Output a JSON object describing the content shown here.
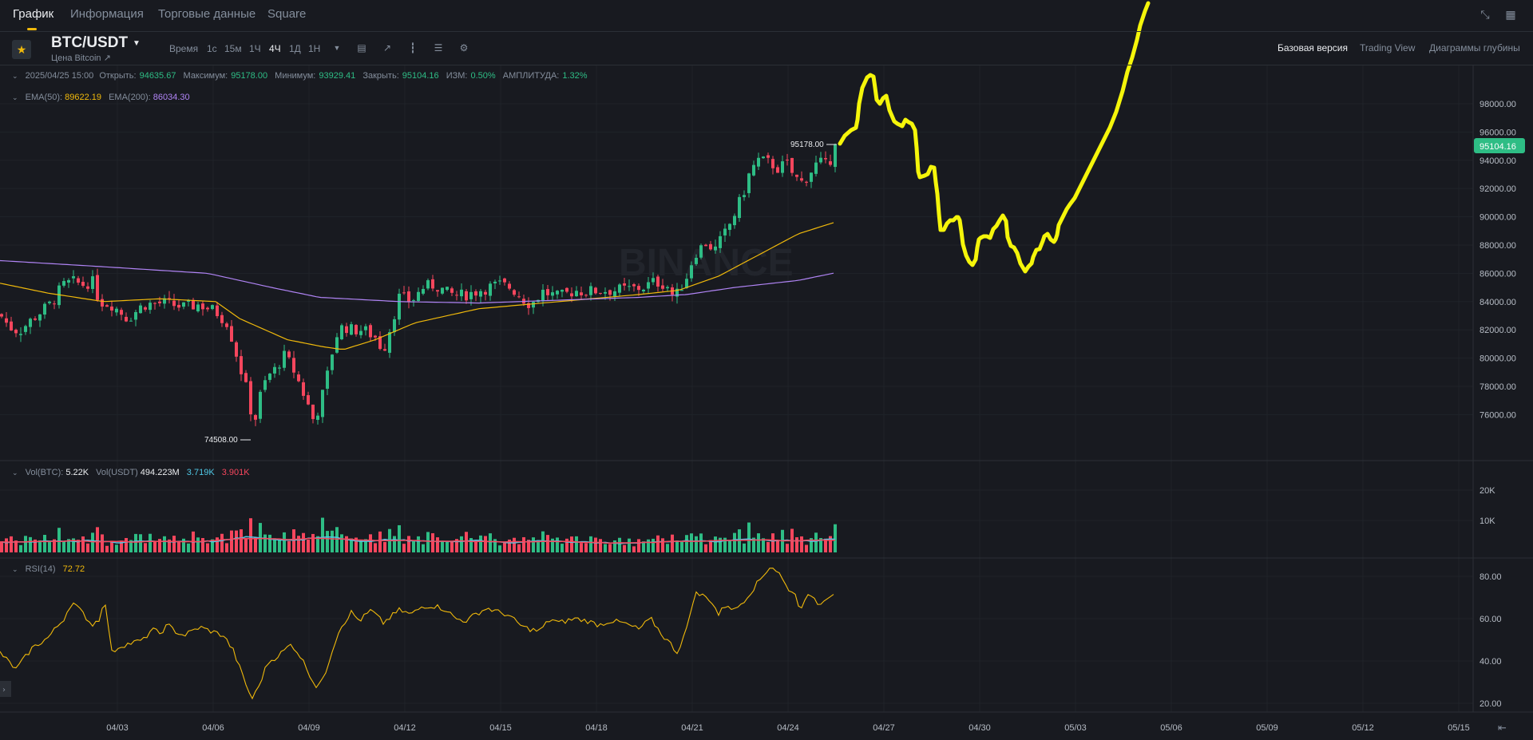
{
  "nav": {
    "tabs": [
      {
        "label": "График",
        "active": true
      },
      {
        "label": "Информация"
      },
      {
        "label": "Торговые данные"
      },
      {
        "label": "Square"
      }
    ]
  },
  "toolbar": {
    "symbol": "BTC/USDT",
    "subtitle": "Цена Bitcoin ↗",
    "timeframes": [
      "Время",
      "1с",
      "15м",
      "1Ч",
      "4Ч",
      "1Д",
      "1Н"
    ],
    "active_timeframe": "4Ч",
    "views": [
      "Базовая версия",
      "Trading View",
      "Диаграммы глубины"
    ],
    "active_view": "Базовая версия"
  },
  "ohlc": {
    "date": "2025/04/25 15:00",
    "open_label": "Открыть:",
    "open": "94635.67",
    "high_label": "Максимум:",
    "high": "95178.00",
    "low_label": "Минимум:",
    "low": "93929.41",
    "close_label": "Закрыть:",
    "close": "95104.16",
    "change_label": "ИЗМ:",
    "change": "0.50%",
    "amp_label": "АМПЛИТУДА:",
    "amp": "1.32%"
  },
  "ema": {
    "ema50_label": "EMA(50):",
    "ema50": "89622.19",
    "ema200_label": "EMA(200):",
    "ema200": "86034.30"
  },
  "volume": {
    "btc_label": "Vol(BTC):",
    "btc": "5.22K",
    "usdt_label": "Vol(USDT)",
    "usdt": "494.223M",
    "ma1": "3.719K",
    "ma2": "3.901K"
  },
  "rsi": {
    "label": "RSI(14)",
    "value": "72.72"
  },
  "watermark": "BINANCE",
  "colors": {
    "up": "#2ebd85",
    "down": "#f6465d",
    "ema50": "#f0b90b",
    "ema200": "#b084f5",
    "rsi": "#f0b90b",
    "vol_ma1": "#50c8e6",
    "vol_ma2": "#f6465d",
    "drawing": "#f5f50a"
  },
  "chart_data": {
    "type": "candlestick",
    "x_ticks": [
      "04/03",
      "04/06",
      "04/09",
      "04/12",
      "04/15",
      "04/18",
      "04/21",
      "04/24",
      "04/27",
      "04/30",
      "05/03",
      "05/06",
      "05/09",
      "05/12",
      "05/15"
    ],
    "price_ticks": [
      "98000.00",
      "96000.00",
      "94000.00",
      "92000.00",
      "90000.00",
      "88000.00",
      "86000.00",
      "84000.00",
      "82000.00",
      "80000.00",
      "78000.00",
      "76000.00"
    ],
    "price_range": [
      74000,
      99500
    ],
    "last_price": "95104.16",
    "high_marker": "95178.00",
    "low_marker": "74508.00",
    "volume_ticks": [
      "20K",
      "10K"
    ],
    "rsi_ticks": [
      "80.00",
      "60.00",
      "40.00",
      "20.00"
    ],
    "ema50_end": 89622.19,
    "ema200_end": 86034.3,
    "rsi_last": 72.72
  }
}
